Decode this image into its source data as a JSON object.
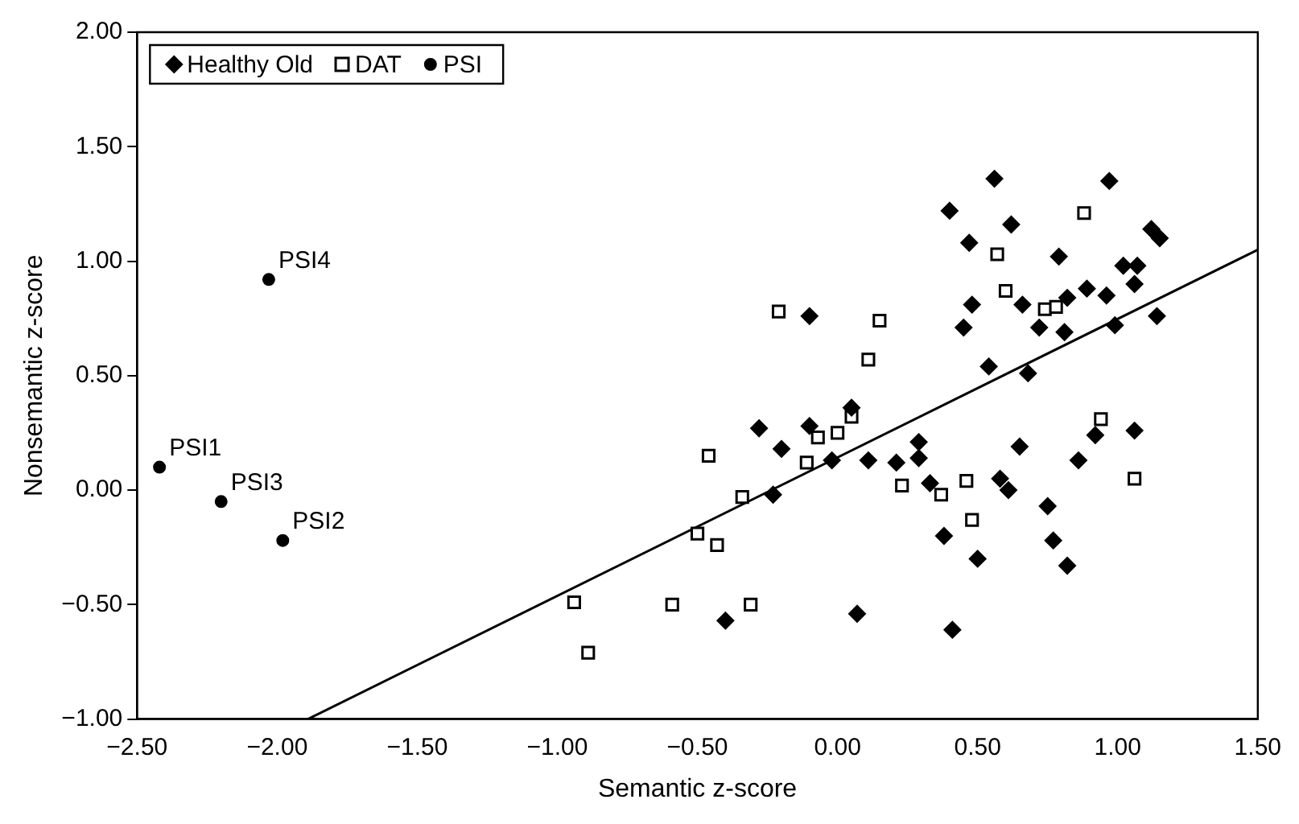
{
  "chart_data": {
    "type": "scatter",
    "xlabel": "Semantic z-score",
    "ylabel": "Nonsemantic z-score",
    "xlim": [
      -2.5,
      1.5
    ],
    "ylim": [
      -1,
      2
    ],
    "xticks": [
      {
        "value": -2.5,
        "label": "−2.50"
      },
      {
        "value": -2,
        "label": "−2.00"
      },
      {
        "value": -1.5,
        "label": "−1.50"
      },
      {
        "value": -1,
        "label": "−1.00"
      },
      {
        "value": -0.5,
        "label": "−0.50"
      },
      {
        "value": 0,
        "label": "0.00"
      },
      {
        "value": 0.5,
        "label": "0.50"
      },
      {
        "value": 1,
        "label": "1.00"
      },
      {
        "value": 1.5,
        "label": "1.50"
      }
    ],
    "yticks": [
      {
        "value": -1,
        "label": "−1.00"
      },
      {
        "value": -0.5,
        "label": "−0.50"
      },
      {
        "value": 0,
        "label": "0.00"
      },
      {
        "value": 0.5,
        "label": "0.50"
      },
      {
        "value": 1,
        "label": "1.00"
      },
      {
        "value": 1.5,
        "label": "1.50"
      },
      {
        "value": 2,
        "label": "2.00"
      }
    ],
    "legend": "top left",
    "grid": false,
    "series": [
      {
        "name": "Healthy Old",
        "color": "#000000",
        "marker": "diamond",
        "x": [
          -0.1,
          0.05,
          -0.28,
          -0.2,
          -0.1,
          -0.02,
          0.11,
          0.21,
          -0.23,
          -0.4,
          0.07,
          0.56,
          0.97,
          0.4,
          0.62,
          0.47,
          0.79,
          1.12,
          1.15,
          1.02,
          1.07,
          1.06,
          0.89,
          0.96,
          0.82,
          0.66,
          0.48,
          0.45,
          0.72,
          0.81,
          0.99,
          1.14,
          0.54,
          0.68,
          0.29,
          0.29,
          0.65,
          0.92,
          1.06,
          0.86,
          0.33,
          0.58,
          0.61,
          0.75,
          0.38,
          0.77,
          0.5,
          0.82,
          0.41
        ],
        "values": [
          0.76,
          0.36,
          0.27,
          0.18,
          0.28,
          0.13,
          0.13,
          0.12,
          -0.02,
          -0.57,
          -0.54,
          1.36,
          1.35,
          1.22,
          1.16,
          1.08,
          1.02,
          1.14,
          1.1,
          0.98,
          0.98,
          0.9,
          0.88,
          0.85,
          0.84,
          0.81,
          0.81,
          0.71,
          0.71,
          0.69,
          0.72,
          0.76,
          0.54,
          0.51,
          0.21,
          0.14,
          0.19,
          0.24,
          0.26,
          0.13,
          0.03,
          0.05,
          0.0,
          -0.07,
          -0.2,
          -0.22,
          -0.3,
          -0.33,
          -0.61
        ]
      },
      {
        "name": "DAT",
        "color": "#000000",
        "marker": "square",
        "x": [
          -0.94,
          -0.89,
          -0.59,
          -0.5,
          -0.46,
          -0.43,
          -0.34,
          -0.31,
          -0.21,
          -0.11,
          -0.07,
          0.0,
          0.05,
          0.11,
          0.15,
          0.23,
          0.37,
          0.46,
          0.48,
          0.57,
          0.6,
          0.74,
          0.78,
          0.88,
          0.94,
          1.06
        ],
        "values": [
          -0.49,
          -0.71,
          -0.5,
          -0.19,
          0.15,
          -0.24,
          -0.03,
          -0.5,
          0.78,
          0.12,
          0.23,
          0.25,
          0.32,
          0.57,
          0.74,
          0.02,
          -0.02,
          0.04,
          -0.13,
          1.03,
          0.87,
          0.79,
          0.8,
          1.21,
          0.31,
          0.05
        ]
      },
      {
        "name": "PSI",
        "color": "#000000",
        "marker": "circle",
        "x": [
          -2.42,
          -1.98,
          -2.2,
          -2.03
        ],
        "values": [
          0.1,
          -0.22,
          -0.05,
          0.92
        ]
      },
      {
        "type": "line",
        "color": "#000000",
        "marker": "none",
        "line_style": "solid",
        "x": [
          -1.89,
          1.5
        ],
        "values": [
          -1.0,
          1.05
        ]
      }
    ],
    "annotations": [
      {
        "text": "PSI1",
        "x": -2.42,
        "y": 0.1
      },
      {
        "text": "PSI2",
        "x": -1.98,
        "y": -0.22
      },
      {
        "text": "PSI3",
        "x": -2.2,
        "y": -0.05
      },
      {
        "text": "PSI4",
        "x": -2.03,
        "y": 0.92
      }
    ]
  }
}
